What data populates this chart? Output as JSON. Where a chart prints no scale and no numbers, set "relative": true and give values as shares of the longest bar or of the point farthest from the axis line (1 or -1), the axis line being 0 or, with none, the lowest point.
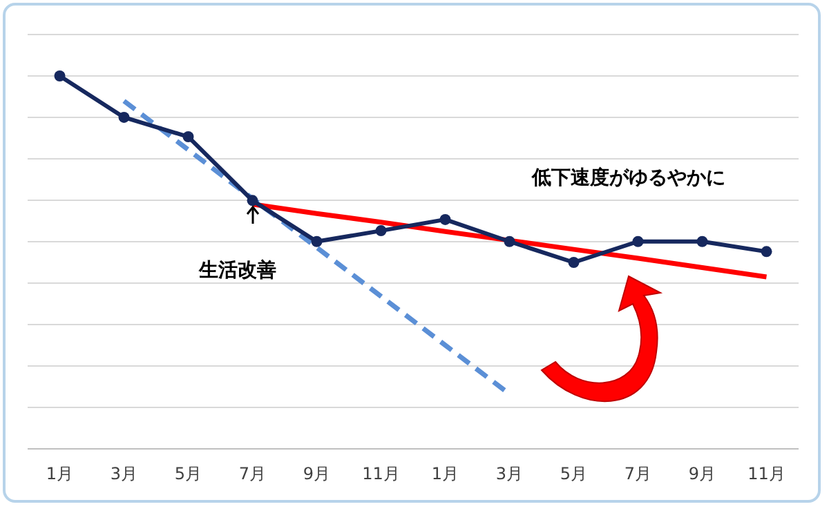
{
  "chart_data": {
    "type": "line",
    "relative": true,
    "grid": true,
    "categories": [
      "1月",
      "3月",
      "5月",
      "7月",
      "9月",
      "11月",
      "1月",
      "3月",
      "5月",
      "7月",
      "9月",
      "11月"
    ],
    "series": [
      {
        "color": "#16285e",
        "marker": "circle",
        "line_style": "solid",
        "values": [
          1,
          0.889,
          0.837,
          0.666,
          0.556,
          0.585,
          0.615,
          0.556,
          0.5,
          0.556,
          0.556,
          0.529
        ]
      },
      {
        "type": "line",
        "color": "#5b8fd6",
        "marker": "none",
        "line_style": "dashed",
        "values": [
          null,
          0.933,
          0.802,
          0.671,
          0.54,
          0.409,
          0.278,
          0.147,
          null,
          null,
          null,
          null
        ]
      },
      {
        "type": "line",
        "color": "#ff0000",
        "marker": "none",
        "line_style": "solid",
        "values": [
          null,
          null,
          null,
          0.656,
          0.631,
          0.608,
          0.583,
          0.559,
          0.535,
          0.511,
          0.486,
          0.461
        ]
      }
    ],
    "annotations": [
      "低下速度がゆるやかに",
      "生活改善"
    ]
  }
}
